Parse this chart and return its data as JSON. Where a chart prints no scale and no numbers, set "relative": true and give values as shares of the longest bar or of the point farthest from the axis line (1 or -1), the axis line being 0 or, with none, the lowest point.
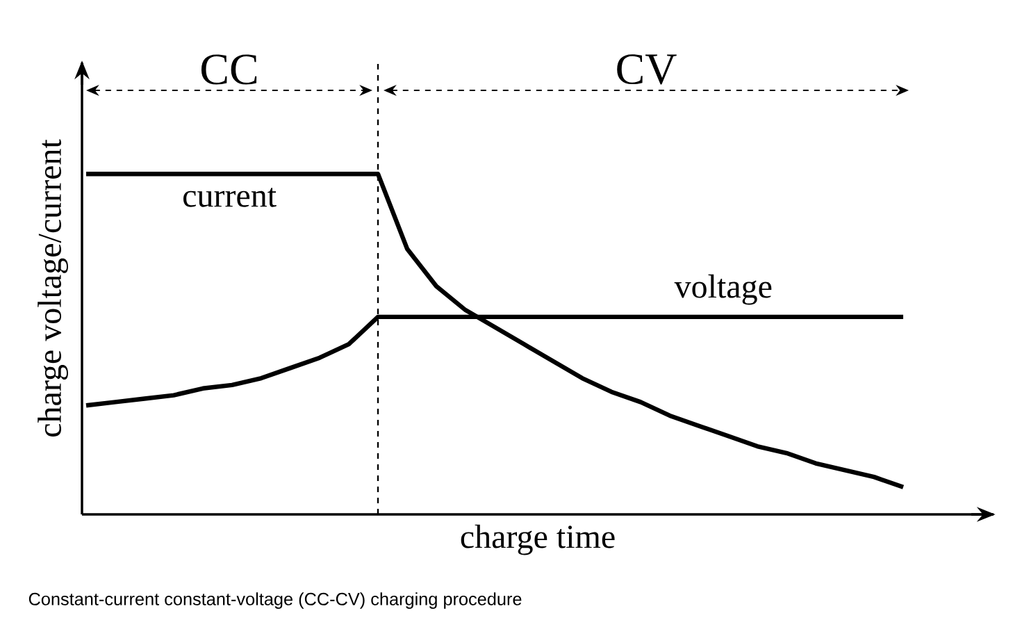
{
  "chart_data": {
    "type": "line",
    "relative": true,
    "marker": "none",
    "line_style": "solid",
    "xlabel": "charge time",
    "ylabel": "charge voltage/current",
    "categories": [
      null,
      null,
      null,
      null,
      null,
      null,
      null,
      null,
      null,
      null,
      null,
      null,
      null,
      null,
      null,
      null,
      null,
      null,
      null,
      null,
      null,
      null,
      null,
      null,
      null,
      null,
      null,
      null,
      null
    ],
    "series": [
      {
        "name": "current",
        "color": "#000000",
        "values": [
          1.0,
          1.0,
          1.0,
          1.0,
          1.0,
          1.0,
          1.0,
          1.0,
          1.0,
          1.0,
          1.0,
          0.78,
          0.67,
          0.6,
          0.55,
          0.5,
          0.45,
          0.4,
          0.36,
          0.33,
          0.29,
          0.26,
          0.23,
          0.2,
          0.18,
          0.15,
          0.13,
          0.11,
          0.08
        ]
      },
      {
        "name": "voltage",
        "color": "#000000",
        "values": [
          0.32,
          0.33,
          0.34,
          0.35,
          0.37,
          0.38,
          0.4,
          0.43,
          0.46,
          0.5,
          0.58,
          0.58,
          0.58,
          0.58,
          0.58,
          0.58,
          0.58,
          0.58,
          0.58,
          0.58,
          0.58,
          0.58,
          0.58,
          0.58,
          0.58,
          0.58,
          0.58,
          0.58,
          0.58
        ]
      }
    ],
    "annotations": [
      "CC",
      "CV",
      "Constant-current constant-voltage (CC-CV) charging procedure"
    ]
  }
}
